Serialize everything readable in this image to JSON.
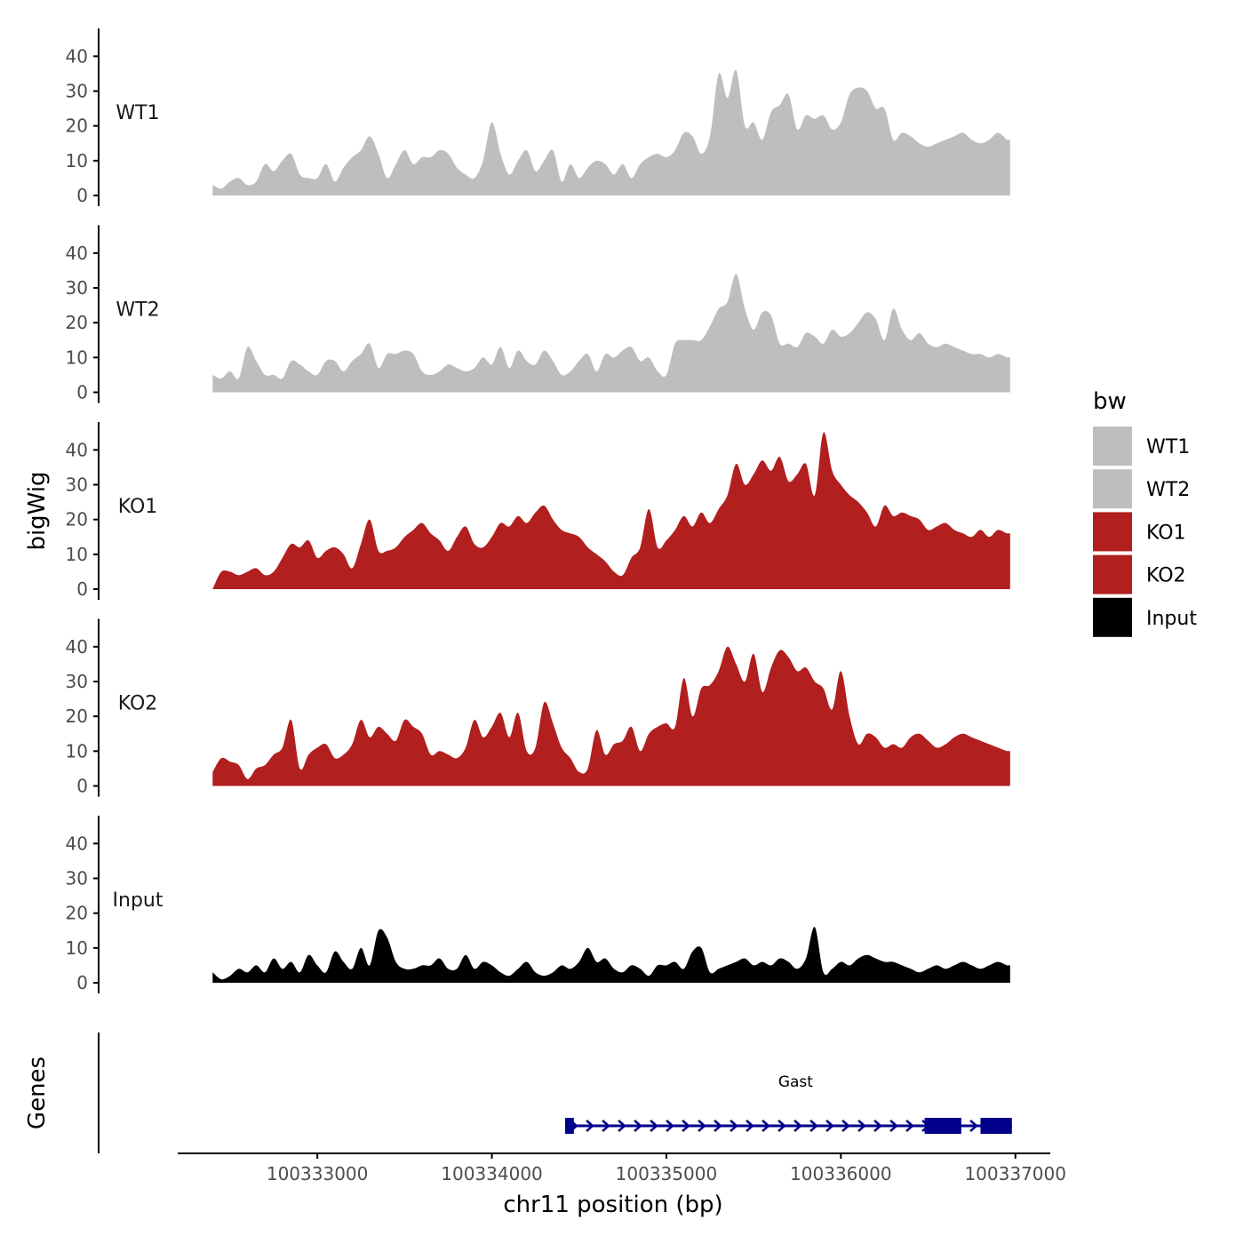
{
  "chart_data": {
    "type": "area",
    "xlabel": "chr11 position (bp)",
    "ylabel": "bigWig",
    "genes_label": "Genes",
    "xlim": [
      100332200,
      100337200
    ],
    "ylim": [
      0,
      48
    ],
    "x_ticks": [
      100333000,
      100334000,
      100335000,
      100336000,
      100337000
    ],
    "x_tick_labels": [
      "100333000",
      "100334000",
      "100335000",
      "100336000",
      "100337000"
    ],
    "y_ticks": [
      0,
      10,
      20,
      30,
      40
    ],
    "y_tick_labels": [
      "0",
      "10",
      "20",
      "30",
      "40"
    ],
    "legend": {
      "title": "bw",
      "entries": [
        {
          "label": "WT1",
          "color": "#bebebe"
        },
        {
          "label": "WT2",
          "color": "#bebebe"
        },
        {
          "label": "KO1",
          "color": "#b21f1f"
        },
        {
          "label": "KO2",
          "color": "#b21f1f"
        },
        {
          "label": "Input",
          "color": "#000000"
        }
      ]
    },
    "series": [
      {
        "name": "WT1",
        "color": "#bebebe",
        "x": [
          100332400,
          100332450,
          100332500,
          100332550,
          100332600,
          100332650,
          100332700,
          100332750,
          100332800,
          100332850,
          100332900,
          100332950,
          100333000,
          100333050,
          100333100,
          100333150,
          100333200,
          100333250,
          100333300,
          100333350,
          100333400,
          100333450,
          100333500,
          100333550,
          100333600,
          100333650,
          100333700,
          100333750,
          100333800,
          100333850,
          100333900,
          100333950,
          100334000,
          100334050,
          100334100,
          100334150,
          100334200,
          100334250,
          100334300,
          100334350,
          100334400,
          100334450,
          100334500,
          100334550,
          100334600,
          100334650,
          100334700,
          100334750,
          100334800,
          100334850,
          100334900,
          100334950,
          100335000,
          100335050,
          100335100,
          100335150,
          100335200,
          100335250,
          100335300,
          100335350,
          100335400,
          100335450,
          100335500,
          100335550,
          100335600,
          100335650,
          100335700,
          100335750,
          100335800,
          100335850,
          100335900,
          100335950,
          100336000,
          100336050,
          100336100,
          100336150,
          100336200,
          100336250,
          100336300,
          100336350,
          100336400,
          100336450,
          100336500,
          100336550,
          100336600,
          100336650,
          100336700,
          100336750,
          100336800,
          100336850,
          100336900,
          100336950
        ],
        "values": [
          3,
          2,
          4,
          5,
          3,
          4,
          9,
          7,
          10,
          12,
          6,
          5,
          5,
          9,
          4,
          8,
          11,
          13,
          17,
          12,
          5,
          9,
          13,
          9,
          11,
          11,
          13,
          12,
          8,
          6,
          5,
          10,
          21,
          12,
          6,
          10,
          13,
          7,
          10,
          13,
          4,
          9,
          5,
          8,
          10,
          9,
          6,
          9,
          5,
          9,
          11,
          12,
          11,
          13,
          18,
          17,
          12,
          17,
          35,
          28,
          36,
          20,
          21,
          16,
          24,
          26,
          29,
          19,
          23,
          22,
          23,
          19,
          21,
          29,
          31,
          30,
          25,
          25,
          16,
          18,
          17,
          15,
          14,
          15,
          16,
          17,
          18,
          16,
          15,
          16,
          18,
          16
        ],
        "comment_shape": "approximate sampled trace"
      },
      {
        "name": "WT2",
        "color": "#bebebe",
        "x": [
          100332400,
          100332450,
          100332500,
          100332550,
          100332600,
          100332650,
          100332700,
          100332750,
          100332800,
          100332850,
          100332900,
          100332950,
          100333000,
          100333050,
          100333100,
          100333150,
          100333200,
          100333250,
          100333300,
          100333350,
          100333400,
          100333450,
          100333500,
          100333550,
          100333600,
          100333650,
          100333700,
          100333750,
          100333800,
          100333850,
          100333900,
          100333950,
          100334000,
          100334050,
          100334100,
          100334150,
          100334200,
          100334250,
          100334300,
          100334350,
          100334400,
          100334450,
          100334500,
          100334550,
          100334600,
          100334650,
          100334700,
          100334750,
          100334800,
          100334850,
          100334900,
          100334950,
          100335000,
          100335050,
          100335100,
          100335150,
          100335200,
          100335250,
          100335300,
          100335350,
          100335400,
          100335450,
          100335500,
          100335550,
          100335600,
          100335650,
          100335700,
          100335750,
          100335800,
          100335850,
          100335900,
          100335950,
          100336000,
          100336050,
          100336100,
          100336150,
          100336200,
          100336250,
          100336300,
          100336350,
          100336400,
          100336450,
          100336500,
          100336550,
          100336600,
          100336650,
          100336700,
          100336750,
          100336800,
          100336850,
          100336900,
          100336950
        ],
        "values": [
          5,
          4,
          6,
          4,
          13,
          9,
          5,
          5,
          4,
          9,
          8,
          6,
          5,
          9,
          9,
          6,
          9,
          11,
          14,
          7,
          11,
          11,
          12,
          11,
          6,
          5,
          6,
          8,
          7,
          6,
          7,
          10,
          8,
          13,
          7,
          12,
          9,
          8,
          12,
          9,
          5,
          6,
          9,
          11,
          6,
          11,
          10,
          12,
          13,
          9,
          10,
          6,
          5,
          14,
          15,
          15,
          15,
          19,
          24,
          26,
          34,
          24,
          18,
          23,
          22,
          14,
          14,
          13,
          17,
          16,
          14,
          18,
          16,
          17,
          20,
          23,
          21,
          15,
          24,
          18,
          15,
          17,
          14,
          13,
          14,
          13,
          12,
          11,
          11,
          10,
          11,
          10
        ]
      },
      {
        "name": "KO1",
        "color": "#b21f1f",
        "x": [
          100332400,
          100332450,
          100332500,
          100332550,
          100332600,
          100332650,
          100332700,
          100332750,
          100332800,
          100332850,
          100332900,
          100332950,
          100333000,
          100333050,
          100333100,
          100333150,
          100333200,
          100333250,
          100333300,
          100333350,
          100333400,
          100333450,
          100333500,
          100333550,
          100333600,
          100333650,
          100333700,
          100333750,
          100333800,
          100333850,
          100333900,
          100333950,
          100334000,
          100334050,
          100334100,
          100334150,
          100334200,
          100334250,
          100334300,
          100334350,
          100334400,
          100334450,
          100334500,
          100334550,
          100334600,
          100334650,
          100334700,
          100334750,
          100334800,
          100334850,
          100334900,
          100334950,
          100335000,
          100335050,
          100335100,
          100335150,
          100335200,
          100335250,
          100335300,
          100335350,
          100335400,
          100335450,
          100335500,
          100335550,
          100335600,
          100335650,
          100335700,
          100335750,
          100335800,
          100335850,
          100335900,
          100335950,
          100336000,
          100336050,
          100336100,
          100336150,
          100336200,
          100336250,
          100336300,
          100336350,
          100336400,
          100336450,
          100336500,
          100336550,
          100336600,
          100336650,
          100336700,
          100336750,
          100336800,
          100336850,
          100336900,
          100336950
        ],
        "values": [
          0,
          5,
          5,
          4,
          5,
          6,
          4,
          5,
          9,
          13,
          12,
          14,
          9,
          11,
          12,
          10,
          6,
          13,
          20,
          11,
          11,
          12,
          15,
          17,
          19,
          16,
          14,
          11,
          15,
          18,
          13,
          12,
          15,
          19,
          18,
          21,
          19,
          22,
          24,
          20,
          17,
          16,
          15,
          12,
          10,
          8,
          5,
          4,
          9,
          12,
          23,
          12,
          14,
          17,
          21,
          18,
          22,
          19,
          23,
          27,
          36,
          30,
          33,
          37,
          34,
          38,
          31,
          33,
          36,
          27,
          45,
          34,
          30,
          27,
          25,
          22,
          18,
          24,
          21,
          22,
          21,
          20,
          17,
          18,
          19,
          17,
          16,
          15,
          17,
          15,
          17,
          16
        ]
      },
      {
        "name": "KO2",
        "color": "#b21f1f",
        "x": [
          100332400,
          100332450,
          100332500,
          100332550,
          100332600,
          100332650,
          100332700,
          100332750,
          100332800,
          100332850,
          100332900,
          100332950,
          100333000,
          100333050,
          100333100,
          100333150,
          100333200,
          100333250,
          100333300,
          100333350,
          100333400,
          100333450,
          100333500,
          100333550,
          100333600,
          100333650,
          100333700,
          100333750,
          100333800,
          100333850,
          100333900,
          100333950,
          100334000,
          100334050,
          100334100,
          100334150,
          100334200,
          100334250,
          100334300,
          100334350,
          100334400,
          100334450,
          100334500,
          100334550,
          100334600,
          100334650,
          100334700,
          100334750,
          100334800,
          100334850,
          100334900,
          100334950,
          100335000,
          100335050,
          100335100,
          100335150,
          100335200,
          100335250,
          100335300,
          100335350,
          100335400,
          100335450,
          100335500,
          100335550,
          100335600,
          100335650,
          100335700,
          100335750,
          100335800,
          100335850,
          100335900,
          100335950,
          100336000,
          100336050,
          100336100,
          100336150,
          100336200,
          100336250,
          100336300,
          100336350,
          100336400,
          100336450,
          100336500,
          100336550,
          100336600,
          100336650,
          100336700,
          100336750,
          100336800,
          100336850,
          100336900,
          100336950
        ],
        "values": [
          4,
          8,
          7,
          6,
          2,
          5,
          6,
          9,
          11,
          19,
          5,
          9,
          11,
          12,
          8,
          9,
          12,
          19,
          14,
          17,
          15,
          13,
          19,
          17,
          15,
          9,
          10,
          9,
          8,
          11,
          19,
          14,
          17,
          21,
          14,
          21,
          10,
          11,
          24,
          18,
          11,
          8,
          4,
          5,
          16,
          9,
          12,
          13,
          17,
          10,
          15,
          17,
          18,
          17,
          31,
          20,
          28,
          29,
          33,
          40,
          35,
          30,
          38,
          27,
          34,
          39,
          37,
          33,
          34,
          30,
          28,
          22,
          33,
          20,
          12,
          15,
          14,
          11,
          12,
          11,
          14,
          15,
          13,
          11,
          12,
          14,
          15,
          14,
          13,
          12,
          11,
          10
        ]
      },
      {
        "name": "Input",
        "color": "#000000",
        "x": [
          100332400,
          100332450,
          100332500,
          100332550,
          100332600,
          100332650,
          100332700,
          100332750,
          100332800,
          100332850,
          100332900,
          100332950,
          100333000,
          100333050,
          100333100,
          100333150,
          100333200,
          100333250,
          100333300,
          100333350,
          100333400,
          100333450,
          100333500,
          100333550,
          100333600,
          100333650,
          100333700,
          100333750,
          100333800,
          100333850,
          100333900,
          100333950,
          100334000,
          100334050,
          100334100,
          100334150,
          100334200,
          100334250,
          100334300,
          100334350,
          100334400,
          100334450,
          100334500,
          100334550,
          100334600,
          100334650,
          100334700,
          100334750,
          100334800,
          100334850,
          100334900,
          100334950,
          100335000,
          100335050,
          100335100,
          100335150,
          100335200,
          100335250,
          100335300,
          100335350,
          100335400,
          100335450,
          100335500,
          100335550,
          100335600,
          100335650,
          100335700,
          100335750,
          100335800,
          100335850,
          100335900,
          100335950,
          100336000,
          100336050,
          100336100,
          100336150,
          100336200,
          100336250,
          100336300,
          100336350,
          100336400,
          100336450,
          100336500,
          100336550,
          100336600,
          100336650,
          100336700,
          100336750,
          100336800,
          100336850,
          100336900,
          100336950
        ],
        "values": [
          3,
          1,
          2,
          4,
          3,
          5,
          3,
          7,
          4,
          6,
          3,
          8,
          5,
          3,
          9,
          6,
          4,
          10,
          5,
          15,
          13,
          6,
          4,
          4,
          5,
          5,
          7,
          4,
          4,
          8,
          4,
          6,
          5,
          3,
          2,
          4,
          6,
          3,
          2,
          3,
          5,
          4,
          6,
          10,
          6,
          7,
          4,
          3,
          5,
          4,
          2,
          5,
          5,
          6,
          4,
          9,
          10,
          3,
          4,
          5,
          6,
          7,
          5,
          6,
          5,
          7,
          6,
          4,
          7,
          16,
          3,
          4,
          6,
          5,
          7,
          8,
          7,
          6,
          6,
          5,
          4,
          3,
          4,
          5,
          4,
          5,
          6,
          5,
          4,
          5,
          6,
          5
        ]
      }
    ],
    "gene": {
      "name": "Gast",
      "start": 100334420,
      "end": 100336980,
      "strand": "+",
      "exons": [
        [
          100334420,
          100334470
        ],
        [
          100336480,
          100336690
        ],
        [
          100336800,
          100336980
        ]
      ],
      "color": "#00008b"
    }
  }
}
